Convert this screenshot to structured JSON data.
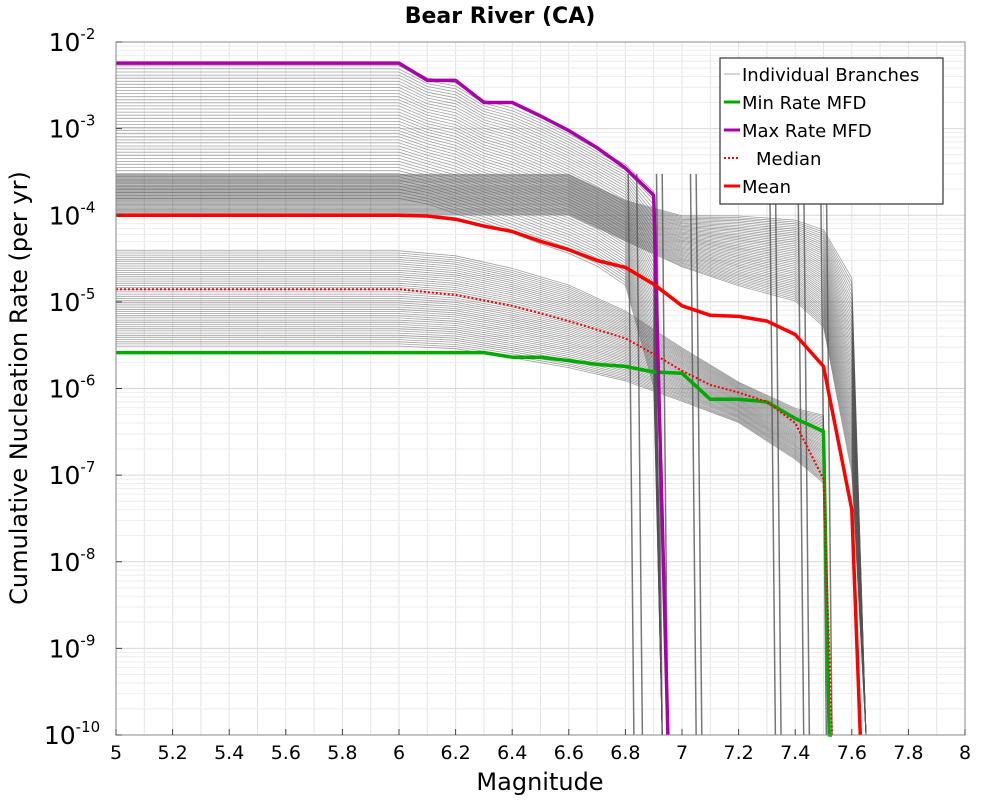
{
  "chart_data": {
    "type": "line",
    "title": "Bear River (CA)",
    "xlabel": "Magnitude",
    "ylabel": "Cumulative Nucleation Rate (per yr)",
    "x_scale": "linear",
    "y_scale": "log",
    "xlim": [
      5,
      8
    ],
    "ylim": [
      1e-10,
      0.01
    ],
    "grid": true,
    "legend_position": "top-right",
    "x_ticks": [
      "5",
      "5.2",
      "5.4",
      "5.6",
      "5.8",
      "6",
      "6.2",
      "6.4",
      "6.6",
      "6.8",
      "7",
      "7.2",
      "7.4",
      "7.6",
      "7.8",
      "8"
    ],
    "y_ticks": [
      {
        "base": "10",
        "exp": "-2"
      },
      {
        "base": "10",
        "exp": "-3"
      },
      {
        "base": "10",
        "exp": "-4"
      },
      {
        "base": "10",
        "exp": "-5"
      },
      {
        "base": "10",
        "exp": "-6"
      },
      {
        "base": "10",
        "exp": "-7"
      },
      {
        "base": "10",
        "exp": "-8"
      },
      {
        "base": "10",
        "exp": "-9"
      },
      {
        "base": "10",
        "exp": "-10"
      }
    ],
    "series": [
      {
        "name": "Individual Branches",
        "color": "#555555",
        "style": "thin-band",
        "note": "many branch curves, represented by envelope groups",
        "groups": [
          {
            "x": [
              5,
              6,
              6.1,
              6.2,
              6.3,
              6.4,
              6.5,
              6.6,
              6.7,
              6.8,
              6.9,
              6.93,
              6.96
            ],
            "upper": [
              0.006,
              0.006,
              0.004,
              0.0035,
              0.0022,
              0.0018,
              0.0013,
              0.0009,
              0.0006,
              0.0004,
              0.0002,
              1e-10,
              1e-10
            ],
            "lower": [
              0.00015,
              0.00015,
              0.00013,
              0.0001,
              8e-05,
              6e-05,
              4.5e-05,
              3.5e-05,
              2.5e-05,
              1.5e-05,
              1e-06,
              1e-10,
              1e-10
            ]
          },
          {
            "x": [
              5,
              6,
              6.2,
              6.4,
              6.6,
              6.8,
              7,
              7.2,
              7.4,
              7.5,
              7.52,
              7.55
            ],
            "upper": [
              4e-05,
              4e-05,
              3.5e-05,
              2.5e-05,
              1.6e-05,
              8e-06,
              3e-06,
              1.2e-06,
              6e-07,
              5e-07,
              1e-10,
              1e-10
            ],
            "lower": [
              3e-06,
              3e-06,
              2.8e-06,
              2.2e-06,
              1.7e-06,
              1.2e-06,
              7e-07,
              4e-07,
              1.5e-07,
              8e-08,
              1e-10,
              1e-10
            ]
          },
          {
            "x": [
              5,
              6.6,
              6.8,
              7,
              7.2,
              7.4,
              7.5,
              7.6,
              7.65
            ],
            "upper": [
              0.0003,
              0.0003,
              0.00015,
              0.0001,
              0.0001,
              9e-05,
              7e-05,
              2e-05,
              1e-10
            ],
            "lower": [
              0.0001,
              0.0001,
              5e-05,
              2.5e-05,
              1.5e-05,
              1e-05,
              5e-06,
              1e-07,
              1e-10
            ]
          }
        ],
        "drops": [
          6.82,
          6.85,
          6.92,
          6.94,
          7.04,
          7.06,
          7.32,
          7.34,
          7.42,
          7.44,
          7.5,
          7.52
        ]
      },
      {
        "name": "Min Rate MFD",
        "color": "#00aa00",
        "style": "solid",
        "x": [
          5,
          6.3,
          6.4,
          6.5,
          6.6,
          6.7,
          6.8,
          6.9,
          7,
          7.1,
          7.2,
          7.3,
          7.4,
          7.5,
          7.52,
          7.53
        ],
        "y": [
          2.6e-06,
          2.6e-06,
          2.3e-06,
          2.3e-06,
          2.1e-06,
          1.9e-06,
          1.8e-06,
          1.55e-06,
          1.5e-06,
          7.5e-07,
          7.5e-07,
          7e-07,
          4.5e-07,
          3.2e-07,
          1e-10,
          1e-10
        ]
      },
      {
        "name": "Max Rate MFD",
        "color": "#aa00aa",
        "style": "solid",
        "x": [
          5,
          6,
          6.1,
          6.2,
          6.3,
          6.4,
          6.5,
          6.6,
          6.7,
          6.8,
          6.9,
          6.95
        ],
        "y": [
          0.0057,
          0.0057,
          0.0036,
          0.0036,
          0.002,
          0.002,
          0.0014,
          0.00095,
          0.0006,
          0.00035,
          0.00017,
          1e-10
        ]
      },
      {
        "name": "Median",
        "color": "#ff0000",
        "style": "dotted",
        "x": [
          5,
          6,
          6.2,
          6.4,
          6.6,
          6.8,
          6.9,
          7,
          7.1,
          7.2,
          7.3,
          7.4,
          7.5,
          7.53
        ],
        "y": [
          1.4e-05,
          1.4e-05,
          1.2e-05,
          9e-06,
          6e-06,
          3.8e-06,
          2.5e-06,
          1.6e-06,
          1.1e-06,
          9e-07,
          7e-07,
          4e-07,
          9e-08,
          1e-10
        ]
      },
      {
        "name": "Mean",
        "color": "#ff0000",
        "style": "solid",
        "x": [
          5,
          6,
          6.1,
          6.2,
          6.3,
          6.4,
          6.5,
          6.6,
          6.7,
          6.8,
          6.9,
          7,
          7.1,
          7.2,
          7.3,
          7.4,
          7.5,
          7.6,
          7.63
        ],
        "y": [
          0.0001,
          0.0001,
          9.8e-05,
          9e-05,
          7.5e-05,
          6.5e-05,
          5e-05,
          4e-05,
          3e-05,
          2.5e-05,
          1.6e-05,
          9e-06,
          7e-06,
          6.8e-06,
          6e-06,
          4.2e-06,
          1.8e-06,
          4e-08,
          1e-10
        ]
      }
    ]
  }
}
